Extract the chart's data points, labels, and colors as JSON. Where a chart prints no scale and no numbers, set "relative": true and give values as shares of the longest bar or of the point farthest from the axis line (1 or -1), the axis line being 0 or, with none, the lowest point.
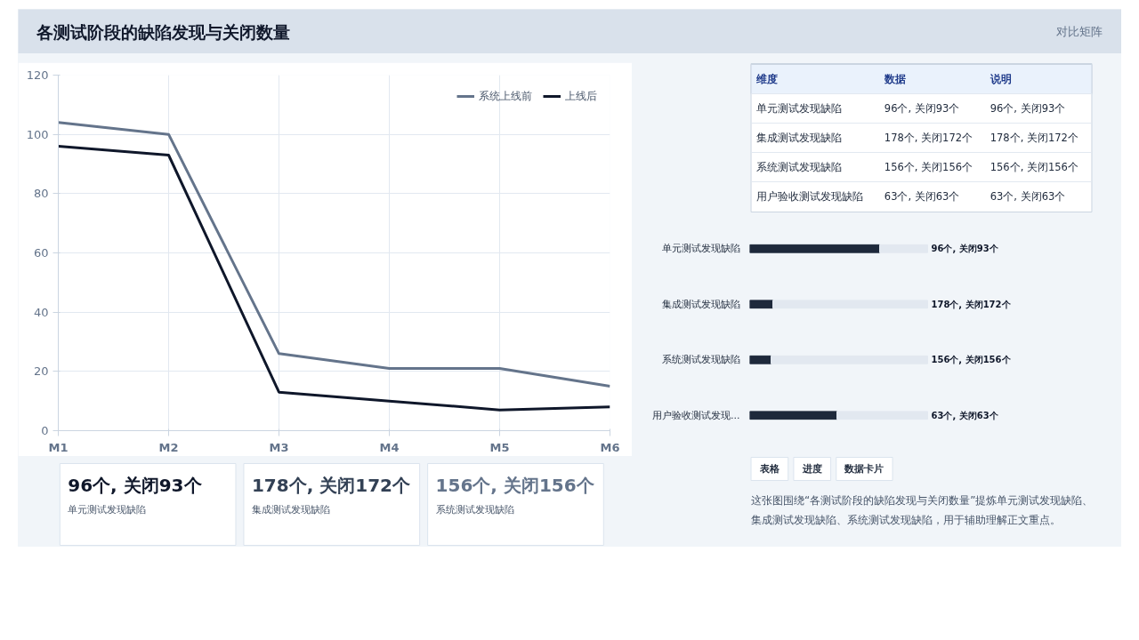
{
  "chart_data": [
    {
      "type": "other",
      "title": "各测试阶段的缺陷发现与关闭数量",
      "annotations": [
        "对比矩阵"
      ]
    },
    {
      "type": "line",
      "categories": [
        "M1",
        "M2",
        "M3",
        "M4",
        "M5",
        "M6"
      ],
      "ylim": [
        0,
        120
      ],
      "yticks": [
        0,
        20,
        40,
        60,
        80,
        100,
        120
      ],
      "grid": true,
      "legend": "top right",
      "marker": "none",
      "line_style": "solid",
      "series": [
        {
          "name": "系统上线前",
          "color": "#64748b",
          "values": [
            104,
            100,
            26,
            21,
            21,
            15
          ]
        },
        {
          "name": "上线后",
          "color": "#0f172a",
          "values": [
            96,
            93,
            13,
            10,
            7,
            8
          ]
        }
      ]
    },
    {
      "type": "other",
      "annotations": [
        "维度",
        "数据",
        "说明",
        "单元测试发现缺陷",
        "96个, 关闭93个",
        "96个, 关闭93个",
        "集成测试发现缺陷",
        "178个, 关闭172个",
        "178个, 关闭172个",
        "系统测试发现缺陷",
        "156个, 关闭156个",
        "156个, 关闭156个",
        "用户验收测试发现缺陷",
        "63个, 关闭63个",
        "63个, 关闭63个"
      ]
    },
    {
      "type": "bar",
      "orientation": "horizontal",
      "stacked": true,
      "relative": true,
      "categories": [
        "单元测试发现缺陷",
        "集成测试发现缺陷",
        "系统测试发现缺陷",
        "用户验收测试发现..."
      ],
      "annotations": [
        "96个, 关闭93个",
        "178个, 关闭172个",
        "156个, 关闭156个",
        "63个, 关闭63个"
      ],
      "series": [
        {
          "color": "#1e293b",
          "values": [
            0.73,
            0.13,
            0.12,
            0.49
          ]
        },
        {
          "color": "#e2e8f0",
          "values": [
            0.27,
            0.87,
            0.88,
            0.51
          ]
        }
      ]
    },
    {
      "type": "other",
      "annotations": [
        "96个, 关闭93个",
        "单元测试发现缺陷",
        "178个, 关闭172个",
        "集成测试发现缺陷",
        "156个, 关闭156个",
        "系统测试发现缺陷"
      ]
    },
    {
      "type": "other",
      "annotations": [
        "表格",
        "进度",
        "数据卡片",
        "这张图围绕“各测试阶段的缺陷发现与关闭数量”提炼单元测试发现缺陷、集成测试发现缺陷、系统测试发现缺陷，用于辅助理解正文重点。"
      ]
    }
  ]
}
